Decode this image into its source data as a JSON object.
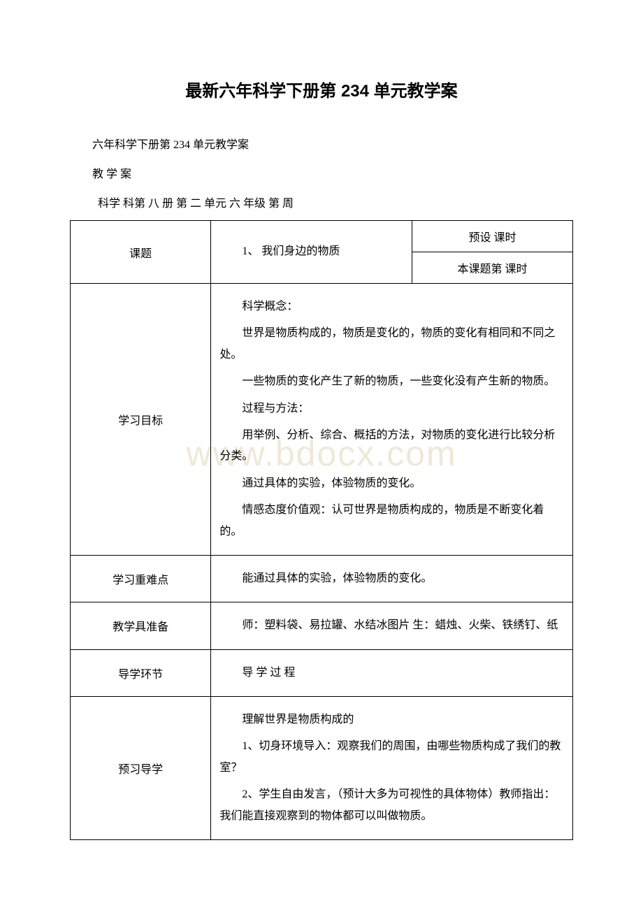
{
  "title": "最新六年科学下册第 234 单元教学案",
  "subtitle": "六年科学下册第 234 单元教学案",
  "line2": "教 学 案",
  "line3": " 科学 科第 八 册 第 二 单元   六 年级   第   周",
  "watermark": "www.bdocx.com",
  "table": {
    "row1": {
      "label": "课题",
      "mid": "1、 我们身边的物质",
      "right1": "预设 课时",
      "right2": "本课题第 课时"
    },
    "row2": {
      "label": "学习目标",
      "p1": "科学概念：",
      "p2": "世界是物质构成的，物质是变化的，物质的变化有相同和不同之处。",
      "p3": "一些物质的变化产生了新的物质，一些变化没有产生新的物质。",
      "p4": "过程与方法：",
      "p5": "用举例、分析、综合、概括的方法，对物质的变化进行比较分析分类。",
      "p6": "通过具体的实验，体验物质的变化。",
      "p7": "情感态度价值观：认可世界是物质构成的，物质是不断变化着的。"
    },
    "row3": {
      "label": "学习重难点",
      "content": "能通过具体的实验，体验物质的变化。"
    },
    "row4": {
      "label": "教学具准备",
      "content": "师：塑料袋、易拉罐、水结冰图片 生：蜡烛、火柴、铁绣钉、纸"
    },
    "row5": {
      "label": "导学环节",
      "content": "导 学 过 程"
    },
    "row6": {
      "label": "预习导学",
      "p1": "理解世界是物质构成的",
      "p2": "1、切身环境导入：观察我们的周围，由哪些物质构成了我们的教室？",
      "p3": "2、学生自由发言，（预计大多为可视性的具体物体）教师指出：我们能直接观察到的物体都可以叫做物质。"
    }
  }
}
